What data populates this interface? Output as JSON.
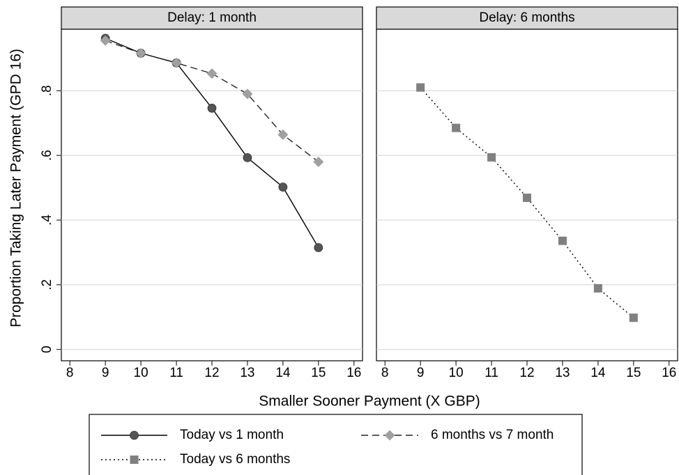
{
  "chart_data": {
    "type": "line",
    "x_label": "Smaller Sooner Payment (X GBP)",
    "y_label": "Proportion Taking Later Payment (GPD 16)",
    "xlim": [
      7.76,
      16.24
    ],
    "xticks": [
      8,
      9,
      10,
      11,
      12,
      13,
      14,
      15,
      16
    ],
    "ylim": [
      -0.035,
      0.99
    ],
    "yticks": [
      0,
      {
        "value": 0.2,
        "label": ".2"
      },
      {
        "value": 0.4,
        "label": ".4"
      },
      {
        "value": 0.6,
        "label": ".6"
      },
      {
        "value": 0.8,
        "label": ".8"
      }
    ],
    "grid": true,
    "panels": [
      {
        "title": "Delay: 1 month",
        "x": [
          9,
          10,
          11,
          12,
          13,
          14,
          15
        ],
        "series": [
          {
            "name": "Today vs 1 month",
            "color": "#555555",
            "line_color": "#000000",
            "dash": "solid",
            "marker": "circle",
            "values": [
              0.962,
              0.916,
              0.886,
              0.746,
              0.593,
              0.502,
              0.315
            ]
          },
          {
            "name": "6 months vs 7 month",
            "color": "#a0a0a0",
            "line_color": "#222222",
            "dash": "dashed",
            "marker": "diamond",
            "values": [
              0.955,
              0.916,
              0.886,
              0.853,
              0.79,
              0.664,
              0.58
            ]
          }
        ]
      },
      {
        "title": "Delay: 6 months",
        "x": [
          9,
          10,
          11,
          12,
          13,
          14,
          15
        ],
        "series": [
          {
            "name": "Today vs 6 months",
            "color": "#808080",
            "line_color": "#000000",
            "dash": "dotted",
            "marker": "square",
            "values": [
              0.81,
              0.685,
              0.594,
              0.469,
              0.336,
              0.189,
              0.098
            ]
          }
        ]
      }
    ]
  }
}
